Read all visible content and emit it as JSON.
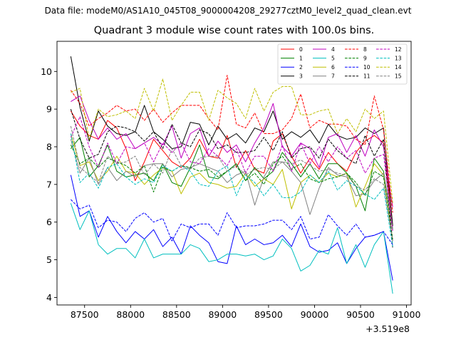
{
  "suptitle": "Data file: modeM0/AS1A10_045T08_9000004208_29277cztM0_level2_quad_clean.evt",
  "chart_data": {
    "type": "line",
    "title": "Quadrant 3 module wise count rates with 100.0s bins.",
    "offset_text": "+3.519e8",
    "xlim": [
      87200,
      91050
    ],
    "ylim": [
      3.8,
      10.8
    ],
    "xticks": [
      87500,
      88000,
      88500,
      89000,
      89500,
      90000,
      90500,
      91000
    ],
    "xtick_labels": [
      "87500",
      "88000",
      "88500",
      "89000",
      "89500",
      "90000",
      "90500",
      "91000"
    ],
    "yticks": [
      4,
      5,
      6,
      7,
      8,
      9,
      10
    ],
    "ytick_labels": [
      "4",
      "5",
      "6",
      "7",
      "8",
      "9",
      "10"
    ],
    "x": [
      87350,
      87450,
      87550,
      87650,
      87750,
      87850,
      87950,
      88050,
      88150,
      88250,
      88350,
      88450,
      88550,
      88650,
      88750,
      88850,
      88950,
      89050,
      89150,
      89250,
      89350,
      89450,
      89550,
      89650,
      89750,
      89850,
      89950,
      90050,
      90150,
      90250,
      90350,
      90450,
      90550,
      90650,
      90750,
      90850
    ],
    "legend": {
      "placement": "top-right",
      "columns": 4
    },
    "series": [
      {
        "name": "0",
        "color": "#ff0000",
        "dash": "solid",
        "values": [
          8.95,
          8.55,
          8.3,
          8.2,
          8.7,
          8.5,
          7.95,
          7.1,
          7.6,
          8.2,
          7.9,
          7.6,
          7.45,
          7.7,
          8.2,
          7.75,
          7.7,
          8.3,
          7.45,
          7.9,
          7.4,
          7.3,
          8.15,
          8.35,
          7.75,
          7.3,
          7.7,
          7.4,
          7.85,
          7.55,
          7.35,
          7.85,
          8.15,
          8.3,
          8.1,
          5.9
        ]
      },
      {
        "name": "1",
        "color": "#008000",
        "dash": "solid",
        "values": [
          7.95,
          8.25,
          7.2,
          7.5,
          8.05,
          7.35,
          7.2,
          7.25,
          7.3,
          7.1,
          7.55,
          7.05,
          6.95,
          7.45,
          8.05,
          7.2,
          7.15,
          7.35,
          7.55,
          7.1,
          7.45,
          7.15,
          7.35,
          7.85,
          7.55,
          7.2,
          7.55,
          7.15,
          7.55,
          7.55,
          7.3,
          6.95,
          6.3,
          7.7,
          7.35,
          5.8
        ]
      },
      {
        "name": "2",
        "color": "#0000ff",
        "dash": "solid",
        "values": [
          7.25,
          6.15,
          6.3,
          5.6,
          6.15,
          5.75,
          5.45,
          5.75,
          5.55,
          5.8,
          5.35,
          5.6,
          5.15,
          5.9,
          5.65,
          5.45,
          4.95,
          4.9,
          5.9,
          5.4,
          5.55,
          5.4,
          5.45,
          5.65,
          5.35,
          5.95,
          5.35,
          5.2,
          5.25,
          5.45,
          4.9,
          5.3,
          5.6,
          5.65,
          5.75,
          4.45
        ]
      },
      {
        "name": "3",
        "color": "#000000",
        "dash": "solid",
        "values": [
          10.4,
          9.05,
          8.15,
          8.95,
          8.55,
          8.35,
          8.3,
          8.4,
          9.1,
          8.4,
          8.2,
          7.95,
          8.0,
          8.65,
          8.6,
          8.05,
          8.55,
          8.2,
          8.35,
          8.1,
          8.5,
          8.4,
          8.95,
          8.2,
          8.4,
          8.25,
          8.45,
          8.1,
          8.6,
          8.3,
          8.2,
          8.25,
          8.5,
          8.35,
          8.5,
          5.9
        ]
      },
      {
        "name": "4",
        "color": "#bf00bf",
        "dash": "solid",
        "values": [
          9.2,
          9.35,
          8.7,
          8.2,
          8.5,
          8.2,
          8.35,
          7.95,
          8.1,
          8.25,
          8.05,
          8.55,
          7.7,
          8.35,
          8.5,
          7.75,
          8.15,
          7.85,
          8.05,
          7.6,
          8.1,
          8.5,
          9.15,
          8.0,
          7.75,
          8.1,
          7.95,
          7.45,
          8.25,
          8.35,
          7.85,
          8.3,
          7.75,
          8.45,
          8.0,
          6.4
        ]
      },
      {
        "name": "5",
        "color": "#00bfbf",
        "dash": "solid",
        "values": [
          6.5,
          5.8,
          6.3,
          5.4,
          5.15,
          5.3,
          5.3,
          5.05,
          5.55,
          5.05,
          5.15,
          5.15,
          5.15,
          5.4,
          5.3,
          4.95,
          5.0,
          5.15,
          5.15,
          5.1,
          5.15,
          5.0,
          5.1,
          5.55,
          5.3,
          4.7,
          4.85,
          5.25,
          5.15,
          5.85,
          4.9,
          5.4,
          4.8,
          5.4,
          5.75,
          4.1
        ]
      },
      {
        "name": "6",
        "color": "#bfbf00",
        "dash": "solid",
        "values": [
          8.35,
          7.5,
          7.6,
          7.1,
          7.35,
          7.75,
          7.35,
          7.3,
          7.0,
          7.25,
          7.45,
          7.35,
          6.75,
          7.2,
          7.3,
          7.05,
          7.0,
          6.9,
          6.95,
          7.3,
          6.95,
          7.15,
          7.0,
          7.4,
          6.35,
          7.05,
          7.25,
          7.05,
          7.3,
          7.2,
          7.3,
          6.4,
          6.95,
          7.55,
          7.25,
          5.5
        ]
      },
      {
        "name": "7",
        "color": "#808080",
        "dash": "solid",
        "values": [
          8.2,
          7.3,
          7.7,
          7.0,
          7.45,
          7.1,
          7.35,
          7.2,
          7.5,
          7.55,
          7.55,
          7.2,
          7.4,
          7.45,
          7.55,
          7.45,
          7.35,
          7.05,
          7.25,
          7.35,
          6.45,
          7.2,
          7.6,
          7.6,
          7.35,
          7.05,
          6.2,
          6.9,
          7.45,
          7.25,
          7.2,
          6.7,
          6.75,
          7.1,
          7.3,
          5.85
        ]
      },
      {
        "name": "8",
        "color": "#ff0000",
        "dash": "dashed",
        "values": [
          9.5,
          9.15,
          8.55,
          8.75,
          8.9,
          9.1,
          8.95,
          9.0,
          8.7,
          9.0,
          8.65,
          8.9,
          9.1,
          9.1,
          9.1,
          8.75,
          8.45,
          9.9,
          8.6,
          8.5,
          8.9,
          8.35,
          8.35,
          8.45,
          8.75,
          9.4,
          8.5,
          8.7,
          8.6,
          8.6,
          8.55,
          8.2,
          8.05,
          9.35,
          8.45,
          6.25
        ]
      },
      {
        "name": "9",
        "color": "#008000",
        "dash": "dashed",
        "values": [
          8.05,
          7.55,
          7.7,
          7.45,
          7.7,
          7.6,
          7.5,
          7.3,
          7.5,
          6.8,
          7.45,
          7.35,
          7.5,
          7.45,
          7.35,
          7.4,
          7.2,
          7.35,
          7.5,
          7.1,
          7.3,
          7.0,
          7.55,
          7.75,
          7.4,
          7.55,
          7.15,
          7.05,
          7.15,
          7.2,
          7.3,
          7.05,
          6.7,
          7.35,
          7.2,
          5.55
        ]
      },
      {
        "name": "10",
        "color": "#0000ff",
        "dash": "dashed",
        "values": [
          6.6,
          6.35,
          6.45,
          5.85,
          6.05,
          6.0,
          5.75,
          6.1,
          6.25,
          6.0,
          6.1,
          5.5,
          5.95,
          5.85,
          5.95,
          5.95,
          5.65,
          6.25,
          5.85,
          5.9,
          5.9,
          5.95,
          6.05,
          6.05,
          5.8,
          6.15,
          5.55,
          5.6,
          6.2,
          5.9,
          5.65,
          5.95,
          5.6,
          5.65,
          5.75,
          5.4
        ]
      },
      {
        "name": "11",
        "color": "#000000",
        "dash": "dashed",
        "values": [
          9.0,
          8.2,
          7.7,
          7.8,
          8.4,
          8.55,
          8.5,
          8.4,
          8.15,
          8.4,
          7.95,
          8.6,
          8.1,
          8.0,
          8.45,
          8.35,
          7.95,
          8.05,
          7.85,
          7.85,
          7.9,
          8.25,
          7.9,
          8.4,
          7.7,
          7.95,
          8.0,
          7.7,
          8.2,
          7.9,
          7.7,
          7.55,
          8.3,
          7.75,
          8.2,
          5.3
        ]
      },
      {
        "name": "12",
        "color": "#bf00bf",
        "dash": "dashed",
        "values": [
          8.25,
          8.8,
          8.0,
          7.45,
          8.1,
          7.55,
          8.0,
          7.95,
          8.1,
          7.6,
          8.1,
          7.85,
          8.1,
          7.6,
          7.55,
          7.95,
          7.75,
          7.5,
          7.95,
          7.3,
          7.75,
          7.75,
          7.35,
          8.05,
          7.35,
          8.1,
          7.55,
          8.0,
          7.6,
          8.0,
          7.7,
          7.9,
          7.3,
          7.7,
          7.8,
          5.75
        ]
      },
      {
        "name": "13",
        "color": "#00bfbf",
        "dash": "dashed",
        "values": [
          8.35,
          7.05,
          7.3,
          6.9,
          7.45,
          7.55,
          7.2,
          7.0,
          7.15,
          7.05,
          7.5,
          7.35,
          7.5,
          7.35,
          7.0,
          6.95,
          7.35,
          7.5,
          6.7,
          7.25,
          7.05,
          6.7,
          7.0,
          6.65,
          6.65,
          6.8,
          7.25,
          7.05,
          7.35,
          6.85,
          7.1,
          6.95,
          6.75,
          6.6,
          6.9,
          5.35
        ]
      },
      {
        "name": "14",
        "color": "#bfbf00",
        "dash": "dashed",
        "values": [
          9.45,
          9.55,
          8.2,
          9.0,
          8.8,
          8.85,
          8.95,
          8.75,
          9.55,
          8.95,
          9.8,
          8.7,
          9.1,
          9.45,
          9.45,
          8.7,
          9.5,
          9.3,
          9.15,
          8.75,
          9.55,
          8.95,
          9.45,
          9.6,
          9.6,
          8.85,
          8.85,
          8.95,
          9.0,
          8.35,
          8.75,
          8.4,
          9.0,
          8.75,
          8.95,
          6.5
        ]
      },
      {
        "name": "15",
        "color": "#808080",
        "dash": "dashed",
        "values": [
          8.55,
          7.45,
          7.25,
          7.05,
          7.75,
          7.55,
          7.6,
          7.75,
          7.25,
          7.55,
          7.3,
          7.95,
          7.5,
          7.4,
          7.7,
          7.75,
          7.75,
          7.35,
          7.5,
          7.25,
          7.4,
          7.45,
          7.4,
          7.6,
          7.55,
          7.65,
          7.5,
          7.35,
          7.4,
          7.3,
          7.25,
          6.95,
          6.85,
          7.15,
          7.0,
          5.5
        ]
      }
    ]
  }
}
